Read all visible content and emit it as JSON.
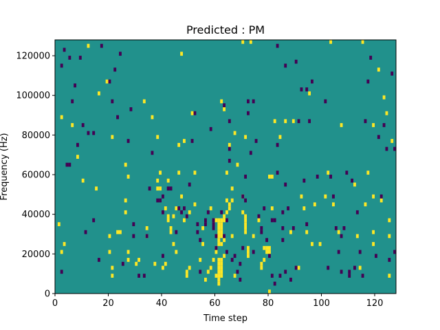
{
  "chart_data": {
    "type": "heatmap",
    "title": "Predicted : PM",
    "xlabel": "Time step",
    "ylabel": "Frequency (Hz)",
    "xlim": [
      0,
      128
    ],
    "ylim": [
      0,
      128000
    ],
    "x_ticks": [
      0,
      20,
      40,
      60,
      80,
      100,
      120
    ],
    "y_ticks": [
      0,
      20000,
      40000,
      60000,
      80000,
      100000,
      120000
    ],
    "x_tick_labels": [
      "0",
      "20",
      "40",
      "60",
      "80",
      "100",
      "120"
    ],
    "y_tick_labels": [
      "0",
      "20000",
      "40000",
      "60000",
      "80000",
      "100000",
      "120000"
    ],
    "grid": false,
    "legend": "none",
    "colors": {
      "background": "#21918c",
      "high": "#fde725",
      "low": "#440154"
    },
    "cell_width": 1,
    "cell_height": 2000,
    "high_cells": [
      [
        1,
        35000
      ],
      [
        2,
        21000
      ],
      [
        2,
        89000
      ],
      [
        3,
        25000
      ],
      [
        6,
        85000
      ],
      [
        8,
        69000
      ],
      [
        10,
        57000
      ],
      [
        12,
        125000
      ],
      [
        15,
        53000
      ],
      [
        16,
        101000
      ],
      [
        19,
        107000
      ],
      [
        20,
        29000
      ],
      [
        20,
        21000
      ],
      [
        21,
        13000
      ],
      [
        21,
        9000
      ],
      [
        21,
        79000
      ],
      [
        23,
        31000
      ],
      [
        24,
        31000
      ],
      [
        26,
        41000
      ],
      [
        26,
        47000
      ],
      [
        26,
        65000
      ],
      [
        27,
        59000
      ],
      [
        27,
        17000
      ],
      [
        27,
        21000
      ],
      [
        30,
        15000
      ],
      [
        31,
        17000
      ],
      [
        33,
        97000
      ],
      [
        34,
        33000
      ],
      [
        34,
        29000
      ],
      [
        36,
        89000
      ],
      [
        37,
        15000
      ],
      [
        38,
        57000
      ],
      [
        38,
        53000
      ],
      [
        38,
        79000
      ],
      [
        39,
        61000
      ],
      [
        39,
        53000
      ],
      [
        40,
        13000
      ],
      [
        41,
        15000
      ],
      [
        41,
        43000
      ],
      [
        42,
        57000
      ],
      [
        42,
        37000
      ],
      [
        42,
        39000
      ],
      [
        43,
        31000
      ],
      [
        43,
        33000
      ],
      [
        44,
        39000
      ],
      [
        44,
        25000
      ],
      [
        45,
        21000
      ],
      [
        45,
        43000
      ],
      [
        46,
        61000
      ],
      [
        46,
        75000
      ],
      [
        47,
        49000
      ],
      [
        47,
        121000
      ],
      [
        48,
        37000
      ],
      [
        48,
        77000
      ],
      [
        49,
        11000
      ],
      [
        49,
        9000
      ],
      [
        50,
        13000
      ],
      [
        50,
        41000
      ],
      [
        51,
        91000
      ],
      [
        52,
        45000
      ],
      [
        52,
        61000
      ],
      [
        54,
        17000
      ],
      [
        55,
        33000
      ],
      [
        55,
        25000
      ],
      [
        56,
        7000
      ],
      [
        57,
        11000
      ],
      [
        58,
        13000
      ],
      [
        58,
        43000
      ],
      [
        59,
        17000
      ],
      [
        60,
        21000
      ],
      [
        60,
        9000
      ],
      [
        60,
        37000
      ],
      [
        60,
        23000
      ],
      [
        61,
        5000
      ],
      [
        61,
        7000
      ],
      [
        61,
        9000
      ],
      [
        61,
        11000
      ],
      [
        61,
        13000
      ],
      [
        61,
        15000
      ],
      [
        61,
        17000
      ],
      [
        61,
        25000
      ],
      [
        61,
        27000
      ],
      [
        61,
        29000
      ],
      [
        61,
        31000
      ],
      [
        61,
        33000
      ],
      [
        61,
        35000
      ],
      [
        61,
        37000
      ],
      [
        62,
        9000
      ],
      [
        62,
        11000
      ],
      [
        62,
        13000
      ],
      [
        62,
        15000
      ],
      [
        62,
        17000
      ],
      [
        62,
        25000
      ],
      [
        62,
        29000
      ],
      [
        62,
        31000
      ],
      [
        62,
        33000
      ],
      [
        62,
        35000
      ],
      [
        62,
        37000
      ],
      [
        62,
        97000
      ],
      [
        63,
        19000
      ],
      [
        63,
        27000
      ],
      [
        63,
        37000
      ],
      [
        63,
        39000
      ],
      [
        63,
        93000
      ],
      [
        64,
        41000
      ],
      [
        64,
        47000
      ],
      [
        64,
        61000
      ],
      [
        65,
        43000
      ],
      [
        65,
        45000
      ],
      [
        65,
        75000
      ],
      [
        66,
        29000
      ],
      [
        66,
        47000
      ],
      [
        66,
        53000
      ],
      [
        67,
        9000
      ],
      [
        67,
        81000
      ],
      [
        68,
        65000
      ],
      [
        70,
        41000
      ],
      [
        70,
        49000
      ],
      [
        70,
        127000
      ],
      [
        71,
        31000
      ],
      [
        71,
        33000
      ],
      [
        71,
        35000
      ],
      [
        71,
        37000
      ],
      [
        71,
        39000
      ],
      [
        71,
        79000
      ],
      [
        72,
        19000
      ],
      [
        72,
        21000
      ],
      [
        72,
        23000
      ],
      [
        73,
        127000
      ],
      [
        74,
        29000
      ],
      [
        76,
        37000
      ],
      [
        77,
        13000
      ],
      [
        77,
        15000
      ],
      [
        78,
        23000
      ],
      [
        78,
        17000
      ],
      [
        79,
        21000
      ],
      [
        79,
        23000
      ],
      [
        80,
        21000
      ],
      [
        80,
        23000
      ],
      [
        80,
        59000
      ],
      [
        80,
        1000
      ],
      [
        81,
        43000
      ],
      [
        81,
        59000
      ],
      [
        82,
        87000
      ],
      [
        84,
        79000
      ],
      [
        86,
        87000
      ],
      [
        88,
        31000
      ],
      [
        89,
        87000
      ],
      [
        91,
        13000
      ],
      [
        92,
        49000
      ],
      [
        93,
        43000
      ],
      [
        94,
        31000
      ],
      [
        95,
        101000
      ],
      [
        96,
        25000
      ],
      [
        97,
        45000
      ],
      [
        99,
        25000
      ],
      [
        101,
        49000
      ],
      [
        102,
        61000
      ],
      [
        103,
        127000
      ],
      [
        104,
        45000
      ],
      [
        106,
        31000
      ],
      [
        107,
        85000
      ],
      [
        112,
        55000
      ],
      [
        113,
        29000
      ],
      [
        114,
        13000
      ],
      [
        115,
        127000
      ],
      [
        116,
        45000
      ],
      [
        117,
        61000
      ],
      [
        119,
        85000
      ],
      [
        119,
        25000
      ],
      [
        119,
        31000
      ],
      [
        119,
        49000
      ],
      [
        121,
        113000
      ],
      [
        122,
        47000
      ],
      [
        123,
        99000
      ],
      [
        124,
        91000
      ],
      [
        125,
        9000
      ],
      [
        125,
        29000
      ],
      [
        125,
        37000
      ],
      [
        126,
        77000
      ]
    ],
    "low_cells": [
      [
        2,
        11000
      ],
      [
        2,
        115000
      ],
      [
        3,
        123000
      ],
      [
        4,
        65000
      ],
      [
        5,
        65000
      ],
      [
        5,
        119000
      ],
      [
        6,
        97000
      ],
      [
        7,
        105000
      ],
      [
        8,
        75000
      ],
      [
        9,
        119000
      ],
      [
        10,
        85000
      ],
      [
        11,
        31000
      ],
      [
        12,
        81000
      ],
      [
        14,
        37000
      ],
      [
        14,
        81000
      ],
      [
        16,
        17000
      ],
      [
        17,
        125000
      ],
      [
        20,
        107000
      ],
      [
        21,
        97000
      ],
      [
        22,
        113000
      ],
      [
        23,
        89000
      ],
      [
        24,
        121000
      ],
      [
        25,
        15000
      ],
      [
        27,
        77000
      ],
      [
        28,
        93000
      ],
      [
        29,
        35000
      ],
      [
        29,
        29000
      ],
      [
        31,
        9000
      ],
      [
        33,
        9000
      ],
      [
        34,
        29000
      ],
      [
        35,
        53000
      ],
      [
        36,
        71000
      ],
      [
        38,
        47000
      ],
      [
        39,
        47000
      ],
      [
        40,
        49000
      ],
      [
        40,
        41000
      ],
      [
        40,
        19000
      ],
      [
        42,
        53000
      ],
      [
        43,
        53000
      ],
      [
        45,
        31000
      ],
      [
        46,
        43000
      ],
      [
        47,
        41000
      ],
      [
        48,
        43000
      ],
      [
        49,
        39000
      ],
      [
        50,
        55000
      ],
      [
        51,
        77000
      ],
      [
        52,
        91000
      ],
      [
        53,
        35000
      ],
      [
        53,
        31000
      ],
      [
        54,
        11000
      ],
      [
        54,
        27000
      ],
      [
        56,
        37000
      ],
      [
        56,
        35000
      ],
      [
        57,
        41000
      ],
      [
        58,
        83000
      ],
      [
        59,
        35000
      ],
      [
        59,
        33000
      ],
      [
        59,
        37000
      ],
      [
        60,
        23000
      ],
      [
        60,
        29000
      ],
      [
        62,
        41000
      ],
      [
        63,
        95000
      ],
      [
        63,
        29000
      ],
      [
        64,
        21000
      ],
      [
        64,
        37000
      ],
      [
        65,
        87000
      ],
      [
        65,
        73000
      ],
      [
        65,
        67000
      ],
      [
        66,
        17000
      ],
      [
        67,
        19000
      ],
      [
        68,
        11000
      ],
      [
        69,
        15000
      ],
      [
        69,
        7000
      ],
      [
        70,
        23000
      ],
      [
        70,
        49000
      ],
      [
        71,
        47000
      ],
      [
        71,
        59000
      ],
      [
        72,
        91000
      ],
      [
        72,
        97000
      ],
      [
        73,
        71000
      ],
      [
        74,
        21000
      ],
      [
        74,
        97000
      ],
      [
        75,
        77000
      ],
      [
        76,
        39000
      ],
      [
        77,
        33000
      ],
      [
        77,
        31000
      ],
      [
        78,
        43000
      ],
      [
        79,
        27000
      ],
      [
        80,
        19000
      ],
      [
        81,
        9000
      ],
      [
        81,
        37000
      ],
      [
        82,
        5000
      ],
      [
        82,
        37000
      ],
      [
        83,
        61000
      ],
      [
        83,
        75000
      ],
      [
        83,
        125000
      ],
      [
        84,
        9000
      ],
      [
        85,
        33000
      ],
      [
        85,
        41000
      ],
      [
        85,
        27000
      ],
      [
        86,
        11000
      ],
      [
        86,
        55000
      ],
      [
        86,
        115000
      ],
      [
        87,
        43000
      ],
      [
        88,
        7000
      ],
      [
        89,
        33000
      ],
      [
        90,
        13000
      ],
      [
        90,
        117000
      ],
      [
        91,
        87000
      ],
      [
        92,
        103000
      ],
      [
        93,
        57000
      ],
      [
        94,
        103000
      ],
      [
        94,
        35000
      ],
      [
        95,
        87000
      ],
      [
        96,
        107000
      ],
      [
        98,
        59000
      ],
      [
        101,
        97000
      ],
      [
        102,
        13000
      ],
      [
        103,
        59000
      ],
      [
        104,
        49000
      ],
      [
        105,
        33000
      ],
      [
        106,
        21000
      ],
      [
        107,
        11000
      ],
      [
        107,
        29000
      ],
      [
        108,
        33000
      ],
      [
        109,
        61000
      ],
      [
        110,
        9000
      ],
      [
        110,
        11000
      ],
      [
        111,
        57000
      ],
      [
        112,
        13000
      ],
      [
        113,
        41000
      ],
      [
        114,
        21000
      ],
      [
        115,
        9000
      ],
      [
        116,
        87000
      ],
      [
        117,
        107000
      ],
      [
        118,
        119000
      ],
      [
        120,
        19000
      ],
      [
        121,
        79000
      ],
      [
        122,
        49000
      ],
      [
        123,
        85000
      ],
      [
        124,
        73000
      ],
      [
        125,
        17000
      ],
      [
        126,
        111000
      ],
      [
        127,
        73000
      ],
      [
        127,
        21000
      ]
    ]
  }
}
